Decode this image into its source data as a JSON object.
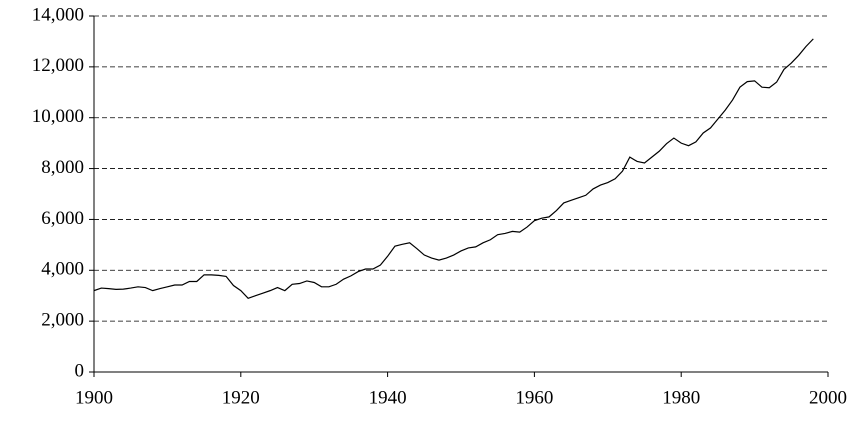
{
  "chart_data": {
    "type": "line",
    "x": [
      1900,
      1901,
      1902,
      1903,
      1904,
      1905,
      1906,
      1907,
      1908,
      1909,
      1910,
      1911,
      1912,
      1913,
      1914,
      1915,
      1916,
      1917,
      1918,
      1919,
      1920,
      1921,
      1922,
      1923,
      1924,
      1925,
      1926,
      1927,
      1928,
      1929,
      1930,
      1931,
      1932,
      1933,
      1934,
      1935,
      1936,
      1937,
      1938,
      1939,
      1940,
      1941,
      1942,
      1943,
      1944,
      1945,
      1946,
      1947,
      1948,
      1949,
      1950,
      1951,
      1952,
      1953,
      1954,
      1955,
      1956,
      1957,
      1958,
      1959,
      1960,
      1961,
      1962,
      1963,
      1964,
      1965,
      1966,
      1967,
      1968,
      1969,
      1970,
      1971,
      1972,
      1973,
      1974,
      1975,
      1976,
      1977,
      1978,
      1979,
      1980,
      1981,
      1982,
      1983,
      1984,
      1985,
      1986,
      1987,
      1988,
      1989,
      1990,
      1991,
      1992,
      1993,
      1994,
      1995,
      1996,
      1997,
      1998
    ],
    "values": [
      3200,
      3300,
      3280,
      3250,
      3260,
      3300,
      3350,
      3320,
      3200,
      3280,
      3350,
      3420,
      3420,
      3560,
      3560,
      3820,
      3820,
      3800,
      3760,
      3400,
      3200,
      2900,
      3000,
      3100,
      3200,
      3320,
      3200,
      3450,
      3480,
      3580,
      3520,
      3350,
      3350,
      3450,
      3650,
      3780,
      3950,
      4050,
      4050,
      4200,
      4550,
      4950,
      5020,
      5080,
      4850,
      4600,
      4480,
      4400,
      4480,
      4600,
      4760,
      4880,
      4920,
      5080,
      5200,
      5400,
      5450,
      5530,
      5500,
      5700,
      5950,
      6050,
      6100,
      6350,
      6650,
      6750,
      6850,
      6950,
      7200,
      7350,
      7450,
      7600,
      7900,
      8450,
      8280,
      8220,
      8450,
      8680,
      8980,
      9200,
      9000,
      8900,
      9050,
      9400,
      9600,
      9950,
      10300,
      10700,
      11200,
      11420,
      11450,
      11200,
      11180,
      11400,
      11900,
      12150,
      12450,
      12800,
      13100
    ],
    "color": "#000000",
    "xlim": [
      1900,
      2000
    ],
    "xticks": [
      1900,
      1920,
      1940,
      1960,
      1980,
      2000
    ],
    "ylim": [
      0,
      14000
    ],
    "yticks": [
      0,
      {
        "value": 2000,
        "label": "2,000"
      },
      {
        "value": 4000,
        "label": "4,000"
      },
      {
        "value": 6000,
        "label": "6,000"
      },
      {
        "value": 8000,
        "label": "8,000"
      },
      {
        "value": 10000,
        "label": "10,000"
      },
      {
        "value": 12000,
        "label": "12,000"
      },
      {
        "value": 14000,
        "label": "14,000"
      }
    ],
    "grid": true
  }
}
